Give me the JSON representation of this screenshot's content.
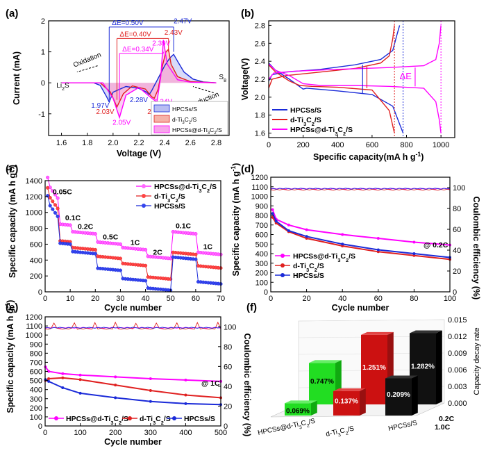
{
  "panels": {
    "a": {
      "label": "(a)"
    },
    "b": {
      "label": "(b)"
    },
    "c": {
      "label": "(c)"
    },
    "d": {
      "label": "(d)"
    },
    "e": {
      "label": "(e)"
    },
    "f": {
      "label": "(f)"
    }
  },
  "colors": {
    "hpcs": "#1a2ad8",
    "dti": "#e02020",
    "hpcs_dti": "#ff00ff",
    "green": "#22dd22",
    "darkred": "#cc1111",
    "black": "#111111"
  },
  "chart_data": [
    {
      "panel": "a",
      "type": "line",
      "xlabel": "Voltage (V)",
      "ylabel": "Current (mA)",
      "xlim": [
        1.5,
        2.9
      ],
      "ylim": [
        -1.7,
        2.0
      ],
      "xticks": [
        "1.6",
        "1.8",
        "2.0",
        "2.2",
        "2.4",
        "2.6",
        "2.8"
      ],
      "yticks": [
        "2",
        "1",
        "0",
        "-1"
      ],
      "legend": [
        "HPCSs/S",
        "d-Ti3C2/S",
        "HPCSs@d-Ti3C2/S"
      ],
      "annotations": {
        "dE1": "ΔE=0.50V",
        "dE2": "ΔE=0.40V",
        "dE3": "ΔE=0.34V",
        "v247": "2.47V",
        "v243": "2.43V",
        "v239": "2.39V",
        "v197": "1.97V",
        "v203": "2.03V",
        "v205": "2.05V",
        "v228": "2.28V",
        "v232": "2.32V",
        "v234": "2.34V",
        "ox": "Oxidation",
        "red": "Reduction",
        "li2s": "Li2S",
        "s8": "S8"
      },
      "series": [
        {
          "name": "HPCSs/S",
          "x": [
            1.6,
            1.85,
            1.9,
            1.95,
            1.97,
            2.0,
            2.1,
            2.2,
            2.26,
            2.28,
            2.3,
            2.35,
            2.4,
            2.44,
            2.47,
            2.5,
            2.55,
            2.62,
            2.7,
            2.8
          ],
          "y": [
            0.0,
            0.0,
            -0.08,
            -0.45,
            -0.62,
            -0.3,
            -0.12,
            -0.18,
            -0.3,
            -0.38,
            -0.25,
            0.15,
            0.55,
            0.8,
            0.92,
            0.7,
            0.35,
            0.12,
            0.03,
            0.0
          ]
        },
        {
          "name": "d-Ti3C2/S",
          "x": [
            1.6,
            1.9,
            1.98,
            2.03,
            2.08,
            2.15,
            2.25,
            2.3,
            2.32,
            2.35,
            2.38,
            2.41,
            2.43,
            2.45,
            2.5,
            2.6,
            2.8
          ],
          "y": [
            0.0,
            0.0,
            -0.3,
            -0.78,
            -0.35,
            -0.1,
            -0.2,
            -0.45,
            -0.5,
            -0.2,
            0.5,
            1.0,
            1.08,
            0.6,
            0.2,
            0.04,
            0.0
          ]
        },
        {
          "name": "HPCSs@d-Ti3C2/S",
          "x": [
            1.6,
            1.92,
            2.0,
            2.05,
            2.1,
            2.2,
            2.3,
            2.34,
            2.37,
            2.39,
            2.42,
            2.5,
            2.6,
            2.8
          ],
          "y": [
            0.0,
            0.0,
            -0.5,
            -1.12,
            -0.4,
            -0.15,
            -0.5,
            -0.62,
            0.2,
            1.38,
            0.6,
            0.1,
            0.02,
            0.0
          ]
        }
      ]
    },
    {
      "panel": "b",
      "type": "line",
      "xlabel": "Specific capacity(mA h g-1)",
      "ylabel": "Voltage(V)",
      "xlim": [
        0,
        1080
      ],
      "ylim": [
        1.55,
        2.85
      ],
      "xticks": [
        "0",
        "200",
        "400",
        "600",
        "800",
        "1000"
      ],
      "yticks": [
        "1.6",
        "1.8",
        "2.0",
        "2.2",
        "2.4",
        "2.6",
        "2.8"
      ],
      "legend": [
        "HPCSs/S",
        "d-Ti3C2/S",
        "HPCSs@d-Ti3C2/S"
      ],
      "annotations": {
        "dE": "ΔE"
      },
      "series": [
        {
          "name": "HPCSs/S charge",
          "x": [
            0,
            20,
            100,
            300,
            500,
            650,
            720,
            745,
            760
          ],
          "y": [
            2.18,
            2.25,
            2.28,
            2.31,
            2.36,
            2.42,
            2.52,
            2.7,
            2.8
          ]
        },
        {
          "name": "HPCSs/S discharge",
          "x": [
            0,
            40,
            120,
            200,
            220,
            400,
            600,
            720,
            760,
            780
          ],
          "y": [
            2.38,
            2.3,
            2.2,
            2.09,
            2.1,
            2.07,
            2.03,
            1.9,
            1.7,
            1.6
          ]
        },
        {
          "name": "d-Ti3C2/S charge",
          "x": [
            0,
            20,
            100,
            300,
            500,
            650,
            700,
            720,
            730
          ],
          "y": [
            2.1,
            2.2,
            2.24,
            2.28,
            2.32,
            2.38,
            2.46,
            2.65,
            2.8
          ]
        },
        {
          "name": "d-Ti3C2/S discharge",
          "x": [
            0,
            40,
            120,
            180,
            250,
            400,
            600,
            700,
            730
          ],
          "y": [
            2.36,
            2.28,
            2.18,
            2.13,
            2.12,
            2.11,
            2.08,
            1.85,
            1.6
          ]
        },
        {
          "name": "HPCSs@d-Ti3C2/S charge",
          "x": [
            0,
            30,
            150,
            400,
            700,
            900,
            970,
            990,
            1000
          ],
          "y": [
            2.2,
            2.27,
            2.29,
            2.31,
            2.33,
            2.35,
            2.42,
            2.6,
            2.8
          ]
        },
        {
          "name": "HPCSs@d-Ti3C2/S discharge",
          "x": [
            0,
            40,
            120,
            200,
            300,
            500,
            700,
            900,
            970,
            990,
            1000
          ],
          "y": [
            2.37,
            2.3,
            2.24,
            2.15,
            2.13,
            2.13,
            2.12,
            2.1,
            1.95,
            1.75,
            1.6
          ]
        }
      ]
    },
    {
      "panel": "c",
      "type": "scatter",
      "xlabel": "Cycle number",
      "ylabel": "Specific capacity (mA h g-1)",
      "xlim": [
        0,
        70
      ],
      "ylim": [
        0,
        1400
      ],
      "xticks": [
        "0",
        "10",
        "20",
        "30",
        "40",
        "50",
        "60",
        "70"
      ],
      "yticks": [
        "0",
        "200",
        "400",
        "600",
        "800",
        "1000",
        "1200",
        "1400"
      ],
      "legend": [
        "HPCSs@d-Ti3C2/S",
        "d-Ti3C2/S",
        "HPCSs/S"
      ],
      "rate_labels": [
        "0.05C",
        "0.1C",
        "0.2C",
        "0.5C",
        "1C",
        "2C",
        "0.1C",
        "1C"
      ],
      "segments": [
        [
          1,
          5
        ],
        [
          6,
          10
        ],
        [
          11,
          20
        ],
        [
          21,
          30
        ],
        [
          31,
          40
        ],
        [
          41,
          50
        ],
        [
          51,
          60
        ],
        [
          61,
          70
        ]
      ],
      "series": [
        {
          "name": "HPCSs@d-Ti3C2/S",
          "levels": [
            1180,
            840,
            730,
            600,
            530,
            420,
            730,
            470
          ]
        },
        {
          "name": "d-Ti3C2/S",
          "levels": [
            1050,
            630,
            530,
            420,
            330,
            160,
            470,
            300
          ]
        },
        {
          "name": "HPCSs/S",
          "levels": [
            950,
            600,
            480,
            270,
            140,
            20,
            410,
            100
          ]
        }
      ]
    },
    {
      "panel": "d",
      "type": "line",
      "xlabel": "Cycle number",
      "ylabel": "Specific capacity (mA h g-1)",
      "y2label": "Coulombic efficiency (%)",
      "xlim": [
        0,
        100
      ],
      "ylim": [
        0,
        1200
      ],
      "y2lim": [
        0,
        110
      ],
      "xticks": [
        "0",
        "20",
        "40",
        "60",
        "80",
        "100"
      ],
      "yticks": [
        "0",
        "100",
        "200",
        "300",
        "400",
        "500",
        "600",
        "700",
        "800",
        "900",
        "1000",
        "1100",
        "1200"
      ],
      "y2ticks": [
        "0",
        "20",
        "40",
        "60",
        "80",
        "100"
      ],
      "rate": "@ 0.2C",
      "legend": [
        "HPCSs@d-Ti3C2/S",
        "d-Ti3C2/S",
        "HPCSs/S"
      ],
      "series": [
        {
          "name": "HPCSs@d-Ti3C2/S",
          "x": [
            1,
            3,
            10,
            20,
            40,
            60,
            80,
            100
          ],
          "y": [
            860,
            760,
            700,
            650,
            600,
            560,
            520,
            490
          ]
        },
        {
          "name": "d-Ti3C2/S",
          "x": [
            1,
            3,
            10,
            20,
            40,
            60,
            80,
            100
          ],
          "y": [
            780,
            720,
            630,
            560,
            480,
            420,
            380,
            340
          ]
        },
        {
          "name": "HPCSs/S",
          "x": [
            1,
            3,
            10,
            20,
            40,
            60,
            80,
            100
          ],
          "y": [
            820,
            740,
            640,
            580,
            500,
            440,
            400,
            360
          ]
        }
      ],
      "ce": [
        99,
        98,
        99
      ]
    },
    {
      "panel": "e",
      "type": "line",
      "xlabel": "Cycle number",
      "ylabel": "Specific capacity (mA h g-1)",
      "y2label": "Coulombic efficiency (%)",
      "xlim": [
        0,
        500
      ],
      "ylim": [
        0,
        1200
      ],
      "y2lim": [
        0,
        110
      ],
      "xticks": [
        "0",
        "100",
        "200",
        "300",
        "400",
        "500"
      ],
      "yticks": [
        "0",
        "100",
        "200",
        "300",
        "400",
        "500",
        "600",
        "700",
        "800",
        "900",
        "1000",
        "1100",
        "1200"
      ],
      "y2ticks": [
        "0",
        "20",
        "40",
        "60",
        "80",
        "100"
      ],
      "rate": "@ 1C",
      "legend": [
        "HPCSs@d-Ti3C2/S",
        "d-Ti3C2/S",
        "HPCSs/S"
      ],
      "series": [
        {
          "name": "HPCSs@d-Ti3C2/S",
          "x": [
            1,
            10,
            50,
            100,
            200,
            300,
            400,
            500
          ],
          "y": [
            650,
            600,
            575,
            560,
            540,
            520,
            505,
            490
          ]
        },
        {
          "name": "d-Ti3C2/S",
          "x": [
            1,
            10,
            50,
            100,
            200,
            300,
            400,
            500
          ],
          "y": [
            500,
            520,
            530,
            510,
            450,
            390,
            340,
            310
          ]
        },
        {
          "name": "HPCSs/S",
          "x": [
            1,
            10,
            50,
            100,
            200,
            300,
            400,
            500
          ],
          "y": [
            510,
            490,
            420,
            360,
            310,
            270,
            245,
            235
          ]
        }
      ],
      "ce": [
        99,
        98,
        99
      ]
    },
    {
      "panel": "f",
      "type": "bar",
      "ylabel": "Capacity decay rate",
      "yticks": [
        "0.000",
        "0.003",
        "0.006",
        "0.009",
        "0.012",
        "0.015"
      ],
      "ylim": [
        0,
        0.015
      ],
      "categories": [
        "HPCSs@d-Ti3C2/S",
        "d-Ti3C2/S",
        "HPCSs/S"
      ],
      "depth_labels": [
        "0.2C",
        "1.0C"
      ],
      "series": [
        {
          "name": "0.2C",
          "values": [
            0.00747,
            0.01251,
            0.01282
          ]
        },
        {
          "name": "1.0C",
          "values": [
            0.00069,
            0.00137,
            0.00209
          ]
        }
      ],
      "value_labels": {
        "back": [
          "0.747%",
          "1.251%",
          "1.282%"
        ],
        "front": [
          "0.069%",
          "0.137%",
          "0.209%"
        ]
      }
    }
  ]
}
